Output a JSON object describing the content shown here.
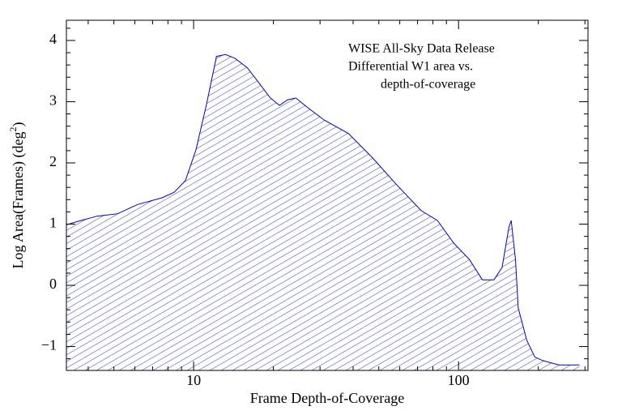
{
  "chart_data": {
    "type": "area",
    "annotations": [
      "WISE All-Sky Data Release",
      "Differential W1 area vs.",
      "depth-of-coverage"
    ],
    "xlabel": "Frame Depth-of-Coverage",
    "ylabel": [
      "Log Area(Frames) (deg",
      "2",
      ")"
    ],
    "xscale": "log",
    "xlim": [
      3.31,
      308
    ],
    "xticks": [
      10,
      100
    ],
    "xminorticks": [
      4,
      5,
      6,
      7,
      8,
      9,
      20,
      30,
      40,
      50,
      60,
      70,
      80,
      90,
      200,
      300
    ],
    "ylim": [
      -1.39,
      4.33
    ],
    "yticks": [
      {
        "value": -1,
        "label": "−1"
      },
      0,
      1,
      2,
      3,
      4
    ],
    "yminorticks": [
      -1.2,
      -0.8,
      -0.6,
      -0.4,
      -0.2,
      0.2,
      0.4,
      0.6,
      0.8,
      1.2,
      1.4,
      1.6,
      1.8,
      2.2,
      2.4,
      2.6,
      2.8,
      3.2,
      3.4,
      3.6,
      3.8,
      4.2
    ],
    "color": "#0000cc",
    "x": [
      3.31,
      3.76,
      4.32,
      5.16,
      6.15,
      7.6,
      8.45,
      9.31,
      10.2,
      11.2,
      12.2,
      13.2,
      14.3,
      15.9,
      17.7,
      19.4,
      21.1,
      22.6,
      24.3,
      27.0,
      31.1,
      38.4,
      47.4,
      58.5,
      72.3,
      83.2,
      95.9,
      110,
      123,
      136,
      146,
      155,
      158,
      164,
      168,
      181,
      194,
      208,
      239,
      286
    ],
    "values": [
      0.99,
      1.06,
      1.13,
      1.17,
      1.32,
      1.43,
      1.52,
      1.71,
      2.21,
      2.97,
      3.74,
      3.77,
      3.71,
      3.56,
      3.3,
      3.07,
      2.94,
      3.03,
      3.06,
      2.9,
      2.7,
      2.48,
      2.08,
      1.64,
      1.22,
      1.06,
      0.69,
      0.42,
      0.09,
      0.09,
      0.29,
      0.95,
      1.06,
      0.42,
      -0.37,
      -0.9,
      -1.17,
      -1.23,
      -1.3,
      -1.3
    ]
  }
}
